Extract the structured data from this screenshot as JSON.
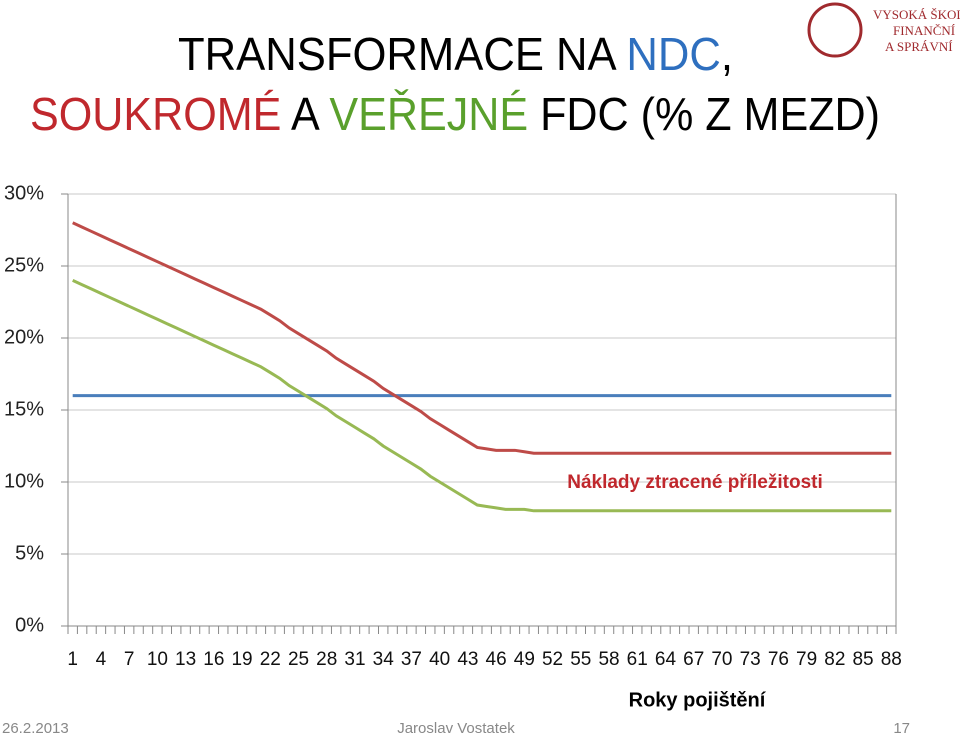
{
  "header": {
    "title_line1": [
      {
        "text": "TRANSFORMACE NA ",
        "color": "#000000"
      },
      {
        "text": "NDC",
        "color": "#2e6fbf"
      },
      {
        "text": ",",
        "color": "#000000"
      }
    ],
    "title_line2": [
      {
        "text": "SOUKROMÉ",
        "color": "#c0282d"
      },
      {
        "text": " A ",
        "color": "#000000"
      },
      {
        "text": "VEŘEJNÉ",
        "color": "#5aa02c"
      },
      {
        "text": " FDC (% Z MEZD)",
        "color": "#000000"
      }
    ],
    "logo": [
      "VYSOKÁ ŠKOLA",
      "FINANČNÍ",
      "A SPRÁVNÍ"
    ]
  },
  "chart_data": {
    "type": "line",
    "annotation": "Náklady ztracené příležitosti",
    "annotation_color": "#c0282d",
    "x_label": "Roky pojištění",
    "categories": [
      1,
      null,
      null,
      4,
      null,
      null,
      7,
      null,
      null,
      10,
      null,
      null,
      13,
      null,
      null,
      16,
      null,
      null,
      19,
      null,
      null,
      22,
      null,
      null,
      25,
      null,
      null,
      28,
      null,
      null,
      31,
      null,
      null,
      34,
      null,
      null,
      37,
      null,
      null,
      40,
      null,
      null,
      43,
      null,
      null,
      46,
      null,
      null,
      49,
      null,
      null,
      52,
      null,
      null,
      55,
      null,
      null,
      58,
      null,
      null,
      61,
      null,
      null,
      64,
      null,
      null,
      67,
      null,
      null,
      70,
      null,
      null,
      73,
      null,
      null,
      76,
      null,
      null,
      79,
      null,
      null,
      82,
      null,
      null,
      85,
      null,
      null,
      88
    ],
    "series": [
      {
        "name": "NDC",
        "color": "#4a7ebb",
        "values": [
          16,
          16,
          16,
          16,
          16,
          16,
          16,
          16,
          16,
          16,
          16,
          16,
          16,
          16,
          16,
          16,
          16,
          16,
          16,
          16,
          16,
          16,
          16,
          16,
          16,
          16,
          16,
          16,
          16,
          16,
          16,
          16,
          16,
          16,
          16,
          16,
          16,
          16,
          16,
          16,
          16,
          16,
          16,
          16,
          16,
          16,
          16,
          16,
          16,
          16,
          16,
          16,
          16,
          16,
          16,
          16,
          16,
          16,
          16,
          16,
          16,
          16,
          16,
          16,
          16,
          16,
          16,
          16,
          16,
          16,
          16,
          16,
          16,
          16,
          16,
          16,
          16,
          16,
          16,
          16,
          16,
          16,
          16,
          16,
          16,
          16,
          16,
          16
        ]
      },
      {
        "name": "Soukromé FDC",
        "color": "#be4b48",
        "values": [
          28,
          27.7,
          27.4,
          27.1,
          26.8,
          26.5,
          26.2,
          25.9,
          25.6,
          25.3,
          25,
          24.7,
          24.4,
          24.1,
          23.8,
          23.5,
          23.2,
          22.9,
          22.6,
          22.3,
          22,
          21.6,
          21.2,
          20.7,
          20.3,
          19.9,
          19.5,
          19.1,
          18.6,
          18.2,
          17.8,
          17.4,
          17,
          16.5,
          16.1,
          15.7,
          15.3,
          14.9,
          14.4,
          14,
          13.6,
          13.2,
          12.8,
          12.4,
          12.3,
          12.2,
          12.2,
          12.2,
          12.1,
          12,
          12,
          12,
          12,
          12,
          12,
          12,
          12,
          12,
          12,
          12,
          12,
          12,
          12,
          12,
          12,
          12,
          12,
          12,
          12,
          12,
          12,
          12,
          12,
          12,
          12,
          12,
          12,
          12,
          12,
          12,
          12,
          12,
          12,
          12,
          12,
          12,
          12,
          12
        ]
      },
      {
        "name": "Veřejné FDC",
        "color": "#98b954",
        "values": [
          24,
          23.7,
          23.4,
          23.1,
          22.8,
          22.5,
          22.2,
          21.9,
          21.6,
          21.3,
          21,
          20.7,
          20.4,
          20.1,
          19.8,
          19.5,
          19.2,
          18.9,
          18.6,
          18.3,
          18,
          17.6,
          17.2,
          16.7,
          16.3,
          15.9,
          15.5,
          15.1,
          14.6,
          14.2,
          13.8,
          13.4,
          13,
          12.5,
          12.1,
          11.7,
          11.3,
          10.9,
          10.4,
          10,
          9.6,
          9.2,
          8.8,
          8.4,
          8.3,
          8.2,
          8.1,
          8.1,
          8.1,
          8,
          8,
          8,
          8,
          8,
          8,
          8,
          8,
          8,
          8,
          8,
          8,
          8,
          8,
          8,
          8,
          8,
          8,
          8,
          8,
          8,
          8,
          8,
          8,
          8,
          8,
          8,
          8,
          8,
          8,
          8,
          8,
          8,
          8,
          8,
          8,
          8,
          8,
          8
        ]
      }
    ],
    "ylim": [
      0,
      30
    ],
    "yticks": [
      {
        "value": 0,
        "label": "0%"
      },
      {
        "value": 5,
        "label": "5%"
      },
      {
        "value": 10,
        "label": "10%"
      },
      {
        "value": 15,
        "label": "15%"
      },
      {
        "value": 20,
        "label": "20%"
      },
      {
        "value": 25,
        "label": "25%"
      },
      {
        "value": 30,
        "label": "30%"
      }
    ],
    "grid": true
  },
  "footer": {
    "date": "26.2.2013",
    "author": "Jaroslav Vostatek",
    "page": "17"
  }
}
